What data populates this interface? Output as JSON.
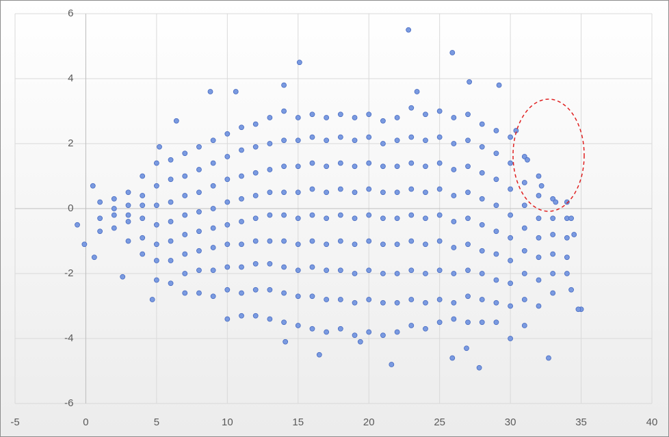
{
  "chart_data": {
    "type": "scatter",
    "xlim": [
      -5,
      40
    ],
    "ylim": [
      -6,
      6
    ],
    "xticks": [
      -5,
      0,
      5,
      10,
      15,
      20,
      25,
      30,
      35,
      40
    ],
    "yticks": [
      -6,
      -4,
      -2,
      0,
      2,
      4,
      6
    ],
    "grid": true,
    "color": "#7a9ae0",
    "x": [
      1,
      1,
      1,
      2,
      2,
      2,
      2,
      3,
      3,
      3,
      3,
      3,
      4,
      4,
      4,
      4,
      4,
      4,
      5,
      5,
      5,
      5,
      5,
      5,
      5,
      6,
      6,
      6,
      6,
      6,
      6,
      6,
      7,
      7,
      7,
      7,
      7,
      7,
      7,
      7,
      8,
      8,
      8,
      8,
      8,
      8,
      8,
      8,
      9,
      9,
      9,
      9,
      9,
      9,
      9,
      9,
      10,
      10,
      10,
      10,
      10,
      10,
      10,
      10,
      10,
      11,
      11,
      11,
      11,
      11,
      11,
      11,
      11,
      11,
      12,
      12,
      12,
      12,
      12,
      12,
      12,
      12,
      12,
      13,
      13,
      13,
      13,
      13,
      13,
      13,
      13,
      13,
      14,
      14,
      14,
      14,
      14,
      14,
      14,
      14,
      14,
      15,
      15,
      15,
      15,
      15,
      15,
      15,
      15,
      15,
      16,
      16,
      16,
      16,
      16,
      16,
      16,
      16,
      16,
      17,
      17,
      17,
      17,
      17,
      17,
      17,
      17,
      17,
      18,
      18,
      18,
      18,
      18,
      18,
      18,
      18,
      18,
      19,
      19,
      19,
      19,
      19,
      19,
      19,
      19,
      19,
      20,
      20,
      20,
      20,
      20,
      20,
      20,
      20,
      20,
      21,
      21,
      21,
      21,
      21,
      21,
      21,
      21,
      21,
      22,
      22,
      22,
      22,
      22,
      22,
      22,
      22,
      22,
      23,
      23,
      23,
      23,
      23,
      23,
      23,
      23,
      23,
      24,
      24,
      24,
      24,
      24,
      24,
      24,
      24,
      24,
      25,
      25,
      25,
      25,
      25,
      25,
      25,
      25,
      25,
      26,
      26,
      26,
      26,
      26,
      26,
      26,
      26,
      26,
      27,
      27,
      27,
      27,
      27,
      27,
      27,
      27,
      27,
      28,
      28,
      28,
      28,
      28,
      28,
      28,
      28,
      28,
      29,
      29,
      29,
      29,
      29,
      29,
      29,
      29,
      29,
      30,
      30,
      30,
      30,
      30,
      30,
      30,
      30,
      31,
      31,
      31,
      31,
      31,
      31,
      31,
      31,
      32,
      32,
      32,
      32,
      32,
      32,
      32,
      33,
      33,
      33,
      33,
      33,
      33,
      34,
      34,
      34,
      34,
      22.8,
      25.9,
      15.1,
      27.1,
      29.2,
      8.8,
      10.6,
      14,
      23.4,
      27.8,
      26.9,
      21.6,
      25.9,
      32.7,
      35,
      34.8,
      34.3,
      0.5,
      -0.6,
      -0.1,
      0.6,
      4.7,
      2.6,
      6.4,
      5.2,
      14.1,
      16.5,
      19.4,
      30,
      30.4,
      31.2,
      32.2,
      33.2,
      34,
      34.3,
      34.5
    ],
    "values": [
      0.2,
      -0.3,
      -0.7,
      0.3,
      -0.2,
      -0.6,
      0.0,
      0.5,
      -0.4,
      -1.0,
      0.1,
      -0.2,
      1.0,
      0.4,
      -0.3,
      -0.9,
      -1.4,
      0.1,
      1.4,
      0.7,
      0.1,
      -0.5,
      -1.1,
      -1.6,
      -2.2,
      1.5,
      0.9,
      0.2,
      -0.4,
      -1.0,
      -1.6,
      -2.3,
      1.7,
      1.0,
      0.4,
      -0.2,
      -0.8,
      -1.4,
      -2.0,
      -2.6,
      1.9,
      1.2,
      0.5,
      -0.1,
      -0.7,
      -1.3,
      -1.9,
      -2.6,
      2.1,
      1.4,
      0.7,
      0.0,
      -0.6,
      -1.2,
      -1.9,
      -2.7,
      2.3,
      1.6,
      0.9,
      0.2,
      -0.5,
      -1.1,
      -1.8,
      -2.5,
      -3.4,
      2.5,
      1.8,
      1.0,
      0.3,
      -0.4,
      -1.1,
      -1.8,
      -2.6,
      -3.3,
      2.6,
      1.9,
      1.1,
      0.4,
      -0.3,
      -1.0,
      -1.7,
      -2.5,
      -3.3,
      2.8,
      2.0,
      1.2,
      0.5,
      -0.2,
      -1.0,
      -1.7,
      -2.5,
      -3.4,
      3.0,
      2.1,
      1.3,
      0.5,
      -0.2,
      -1.0,
      -1.8,
      -2.6,
      -3.5,
      2.8,
      2.1,
      1.3,
      0.5,
      -0.3,
      -1.1,
      -1.9,
      -2.7,
      -3.6,
      2.9,
      2.2,
      1.4,
      0.6,
      -0.2,
      -1.0,
      -1.8,
      -2.7,
      -3.7,
      2.8,
      2.1,
      1.3,
      0.5,
      -0.3,
      -1.1,
      -1.9,
      -2.8,
      -3.8,
      2.9,
      2.2,
      1.4,
      0.6,
      -0.2,
      -1.0,
      -1.9,
      -2.8,
      -3.7,
      2.8,
      2.1,
      1.3,
      0.5,
      -0.3,
      -1.1,
      -2.0,
      -2.9,
      -3.9,
      2.9,
      2.2,
      1.4,
      0.6,
      -0.2,
      -1.0,
      -1.9,
      -2.8,
      -3.8,
      2.7,
      2.0,
      1.3,
      0.5,
      -0.3,
      -1.1,
      -2.0,
      -2.9,
      -3.9,
      2.8,
      2.1,
      1.3,
      0.5,
      -0.3,
      -1.1,
      -2.0,
      -2.9,
      -3.8,
      3.1,
      2.2,
      1.4,
      0.6,
      -0.2,
      -1.0,
      -1.9,
      -2.8,
      -3.6,
      2.9,
      2.1,
      1.3,
      0.5,
      -0.3,
      -1.1,
      -2.0,
      -2.9,
      -3.7,
      3.0,
      2.2,
      1.4,
      0.6,
      -0.2,
      -1.0,
      -1.9,
      -2.8,
      -3.5,
      2.8,
      2.0,
      1.2,
      0.4,
      -0.4,
      -1.2,
      -2.0,
      -2.9,
      -3.4,
      2.9,
      2.1,
      1.3,
      0.5,
      -0.3,
      -1.1,
      -1.9,
      -2.7,
      -3.5,
      2.6,
      1.9,
      1.1,
      0.3,
      -0.5,
      -1.3,
      -2.0,
      -2.8,
      -3.5,
      2.4,
      1.7,
      0.9,
      0.1,
      -0.7,
      -1.4,
      -2.2,
      -2.9,
      -3.5,
      2.2,
      1.4,
      0.6,
      -0.2,
      -0.9,
      -1.6,
      -2.3,
      -3.0,
      1.6,
      0.8,
      0.1,
      -0.6,
      -1.3,
      -2.0,
      -2.8,
      -3.6,
      1.0,
      0.4,
      -0.3,
      -0.9,
      -1.5,
      -2.2,
      -3.0,
      0.3,
      -0.3,
      -0.8,
      -1.4,
      -2.0,
      -2.6,
      -0.3,
      -0.9,
      -1.5,
      -2.0,
      5.5,
      4.8,
      4.5,
      3.9,
      3.8,
      3.6,
      3.6,
      3.8,
      3.6,
      -4.9,
      -4.3,
      -4.8,
      -4.6,
      -4.6,
      -3.1,
      -3.1,
      -2.5,
      0.7,
      -0.5,
      -1.1,
      -1.5,
      -2.8,
      -2.1,
      2.7,
      1.9,
      -4.1,
      -4.5,
      -4.1,
      -4.0,
      2.4,
      1.5,
      0.7,
      0.2,
      0.2,
      -0.3,
      -0.8
    ]
  }
}
